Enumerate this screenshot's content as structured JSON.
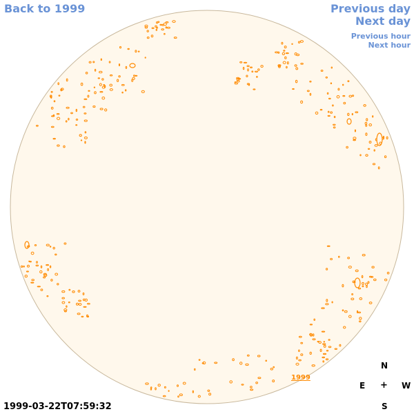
{
  "nav": {
    "back_label": "Back to 1999",
    "previous_day": "Previous day",
    "next_day": "Next day",
    "previous_hour": "Previous hour",
    "next_hour": "Next hour"
  },
  "disk": {
    "fill_color": "#fff8ec",
    "border_color": "#c8b89c",
    "feature_color": "#ff8a00",
    "year_marker": "1999"
  },
  "timestamp": "1999-03-22T07:59:32",
  "compass": {
    "north": "N",
    "east": "E",
    "center": "+",
    "west": "W",
    "south": "S"
  },
  "colors": {
    "link": "#6a93d6",
    "text": "#000000"
  }
}
